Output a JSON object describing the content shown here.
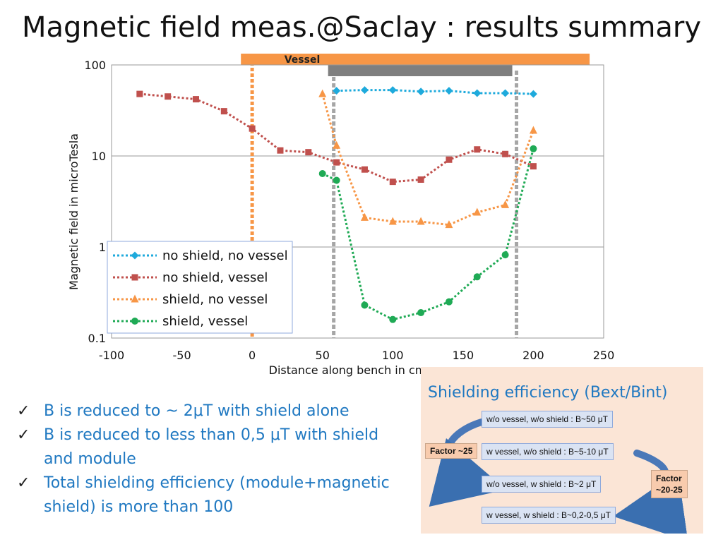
{
  "slide": {
    "title": "Magnetic field meas.@Saclay : results summary"
  },
  "chart_data": {
    "type": "line",
    "ylabel": "Magnetic field in microTesla",
    "xlabel": "Distance along bench in cm",
    "xlim": [
      -100,
      250
    ],
    "ylim": [
      0.1,
      100
    ],
    "y_scale": "log",
    "x_ticks": [
      "-100",
      "-50",
      "0",
      "50",
      "100",
      "150",
      "200",
      "250"
    ],
    "y_ticks": [
      "0.1",
      "1",
      "10",
      "100"
    ],
    "grid": "horizontal",
    "legend_position": "bottom-left",
    "series": [
      {
        "name": "no shield, no vessel",
        "color": "#1eaadc",
        "marker": "diamond",
        "x": [
          60,
          80,
          100,
          120,
          140,
          160,
          180,
          200
        ],
        "y": [
          52,
          53,
          53,
          51,
          52,
          49,
          49,
          48
        ]
      },
      {
        "name": "no shield, vessel",
        "color": "#c0504d",
        "marker": "square",
        "x": [
          -80,
          -60,
          -40,
          -20,
          0,
          20,
          40,
          60,
          80,
          100,
          120,
          140,
          160,
          180,
          200
        ],
        "y": [
          48,
          45,
          42,
          31,
          20,
          11.5,
          11,
          8.5,
          7.1,
          5.2,
          5.5,
          9.1,
          11.8,
          10.5,
          7.7
        ]
      },
      {
        "name": "shield, no vessel",
        "color": "#f79646",
        "marker": "triangle",
        "x": [
          50,
          60,
          80,
          100,
          120,
          140,
          160,
          180,
          200
        ],
        "y": [
          48,
          13,
          2.1,
          1.9,
          1.9,
          1.75,
          2.4,
          2.9,
          19
        ]
      },
      {
        "name": "shield, vessel",
        "color": "#1faa55",
        "marker": "circle",
        "x": [
          50,
          60,
          80,
          100,
          120,
          140,
          160,
          180,
          200
        ],
        "y": [
          6.4,
          5.4,
          0.23,
          0.16,
          0.19,
          0.25,
          0.47,
          0.82,
          12
        ]
      }
    ],
    "annotations": {
      "vessel_bar": {
        "label": "Vessel",
        "color": "#f79646",
        "x_range": [
          -8,
          240
        ]
      },
      "module_bar": {
        "color": "#7f7f7f",
        "x_range": [
          54,
          185
        ]
      },
      "orange_vline_x": 0,
      "grey_vlines_x": [
        58,
        188
      ]
    }
  },
  "bullets": [
    "B is reduced to ~ 2μT with shield alone",
    "B is reduced to less than 0,5 μT with shield and module",
    "Total shielding efficiency (module+magnetic shield) is more than 100"
  ],
  "panel": {
    "title": "Shielding efficiency (Bext/Bint)",
    "rows": [
      "w/o vessel, w/o shield : B~50 μT",
      "w vessel, w/o shield : B~5-10 μT",
      "w/o vessel, w shield : B~2 μT",
      "w vessel, w shield : B~0,2-0,5 μT"
    ],
    "factor_left": "Factor ~25",
    "factor_right_line1": "Factor",
    "factor_right_line2": "~20-25"
  }
}
